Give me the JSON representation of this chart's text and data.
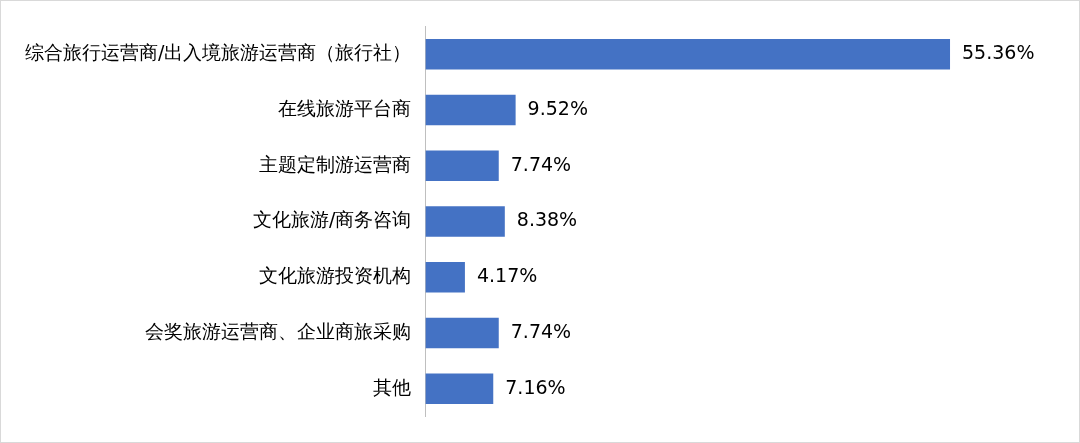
{
  "chart_data": {
    "type": "bar",
    "orientation": "horizontal",
    "categories": [
      "综合旅行运营商/出入境旅游运营商（旅行社）",
      "在线旅游平台商",
      "主题定制游运营商",
      "文化旅游/商务咨询",
      "文化旅游投资机构",
      "会奖旅游运营商、企业商旅采购",
      "其他"
    ],
    "values": [
      55.36,
      9.52,
      7.74,
      8.38,
      4.17,
      7.74,
      7.16
    ],
    "value_labels": [
      "55.36%",
      "9.52%",
      "7.74%",
      "8.38%",
      "4.17%",
      "7.74%",
      "7.16%"
    ],
    "color": "#4472c4"
  }
}
